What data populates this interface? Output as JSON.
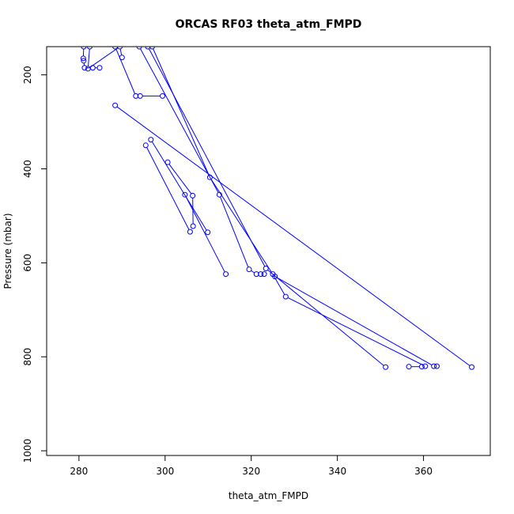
{
  "chart_data": {
    "type": "line",
    "title": "ORCAS RF03 theta_atm_FMPD",
    "xlabel": "theta_atm_FMPD",
    "ylabel": "Pressure (mbar)",
    "xlim": [
      272.5,
      375.5
    ],
    "ylim": [
      1010,
      140
    ],
    "y_reversed": true,
    "x_ticks": [
      280,
      300,
      320,
      340,
      360
    ],
    "y_ticks": [
      200,
      400,
      600,
      800,
      1000
    ],
    "color": "#0000ff",
    "grid": false,
    "legend": "none",
    "series": [
      {
        "points": [
          [
            281.1,
            140
          ],
          [
            281.0,
            165
          ],
          [
            281.1,
            170
          ],
          [
            281.3,
            185
          ],
          [
            283.2,
            185
          ],
          [
            284.8,
            185
          ]
        ]
      },
      {
        "points": [
          [
            282.5,
            140
          ],
          [
            282.1,
            187
          ],
          [
            289.5,
            140
          ],
          [
            290.0,
            163
          ]
        ]
      },
      {
        "points": [
          [
            288.4,
            140
          ],
          [
            293.2,
            245
          ],
          [
            294.2,
            245
          ],
          [
            299.4,
            245
          ]
        ]
      },
      {
        "points": [
          [
            288.4,
            265
          ],
          [
            371.2,
            822
          ]
        ]
      },
      {
        "points": [
          [
            294.0,
            140
          ],
          [
            312.6,
            455
          ],
          [
            319.5,
            614
          ],
          [
            321.2,
            624
          ],
          [
            322.2,
            624
          ],
          [
            323.0,
            624
          ]
        ]
      },
      {
        "points": [
          [
            297.0,
            140
          ],
          [
            310.4,
            418
          ],
          [
            325.0,
            624
          ],
          [
            328.0,
            672
          ],
          [
            360.4,
            820
          ]
        ]
      },
      {
        "points": [
          [
            296.0,
            140
          ],
          [
            323.4,
            612
          ],
          [
            351.2,
            822
          ]
        ]
      },
      {
        "points": [
          [
            296.7,
            338
          ],
          [
            309.9,
            535
          ]
        ]
      },
      {
        "points": [
          [
            300.6,
            386
          ],
          [
            306.4,
            457
          ],
          [
            306.5,
            522
          ]
        ]
      },
      {
        "points": [
          [
            295.5,
            350
          ],
          [
            305.8,
            534
          ]
        ]
      },
      {
        "points": [
          [
            304.6,
            455
          ],
          [
            314.1,
            624
          ]
        ]
      },
      {
        "points": [
          [
            325.5,
            629
          ],
          [
            362.4,
            820
          ],
          [
            363.1,
            820
          ]
        ]
      },
      {
        "points": [
          [
            356.6,
            821
          ],
          [
            359.6,
            821
          ]
        ]
      }
    ]
  }
}
